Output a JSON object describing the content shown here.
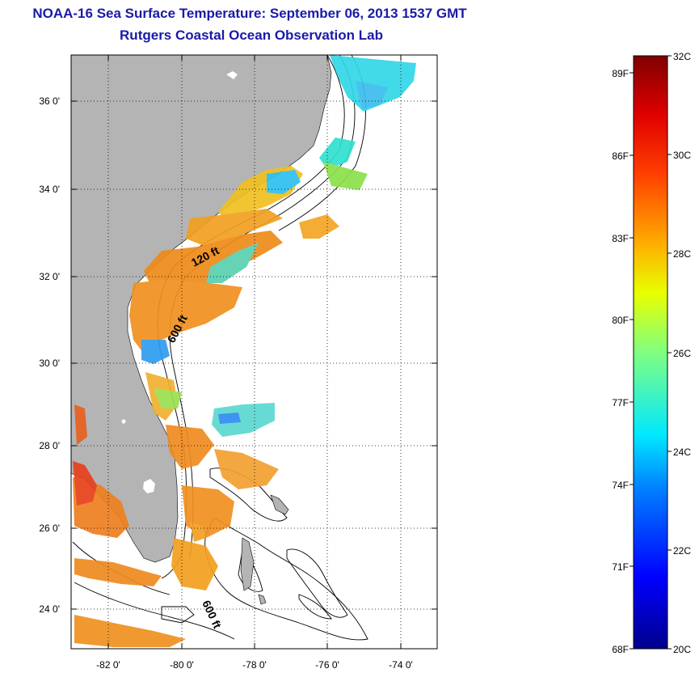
{
  "title": "NOAA-16 Sea Surface Temperature:  September 06, 2013 1537 GMT",
  "subtitle": "Rutgers Coastal Ocean Observation Lab",
  "map": {
    "lat_ticks": [
      "36 0'",
      "34 0'",
      "32 0'",
      "30 0'",
      "28 0'",
      "26 0'",
      "24 0'"
    ],
    "lon_ticks": [
      "-82 0'",
      "-80 0'",
      "-78 0'",
      "-76 0'",
      "-74 0'"
    ],
    "contour_labels": [
      "120 ft",
      "600 ft",
      "600 ft"
    ],
    "colors": {
      "land": "#b4b4b4",
      "ocean": "#ffffff",
      "contour": "#000000"
    }
  },
  "colorbar": {
    "celsius_labels": [
      "32C",
      "30C",
      "28C",
      "26C",
      "24C",
      "22C",
      "20C"
    ],
    "fahrenheit_labels": [
      "89F",
      "86F",
      "83F",
      "80F",
      "77F",
      "74F",
      "71F",
      "68F"
    ],
    "min_c": 20,
    "max_c": 32
  }
}
